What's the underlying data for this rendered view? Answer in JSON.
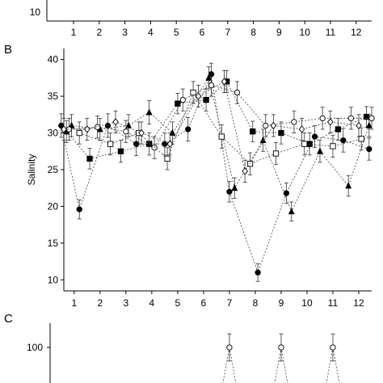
{
  "panel_a": {
    "y_tick": "10",
    "x_ticks": [
      "1",
      "2",
      "3",
      "4",
      "5",
      "6",
      "7",
      "8",
      "9",
      "10",
      "11",
      "12"
    ]
  },
  "panel_b": {
    "letter": "B"
  },
  "panel_c": {
    "letter": "C",
    "y_tick": "100"
  },
  "chart_data": [
    {
      "type": "line",
      "panel": "B",
      "ylabel": "Salinity",
      "xlabel": "",
      "x_ticks": [
        1,
        2,
        3,
        4,
        5,
        6,
        7,
        8,
        9,
        10,
        11,
        12
      ],
      "y_ticks": [
        10,
        15,
        20,
        25,
        30,
        35,
        40
      ],
      "xlim": [
        0.6,
        12.5
      ],
      "ylim": [
        8.5,
        41.5
      ],
      "series": [
        {
          "marker": "circle-filled",
          "x": [
            0.5,
            1.2,
            2.3,
            3.4,
            4.5,
            5.4,
            6.3,
            7.0,
            8.1,
            9.2,
            10.3,
            11.4,
            12.4
          ],
          "y": [
            31,
            19.6,
            31,
            28.5,
            28.5,
            30.5,
            38,
            22,
            11,
            21.8,
            29.5,
            29,
            27.8
          ],
          "err": [
            1.6,
            1.3,
            1.6,
            1.6,
            1.5,
            1.6,
            1.5,
            1.4,
            1.2,
            1.4,
            1.5,
            1.6,
            1.5
          ]
        },
        {
          "marker": "square-filled",
          "x": [
            0.7,
            1.6,
            2.8,
            3.9,
            5.0,
            6.1,
            6.9,
            7.9,
            9.0,
            10.1,
            11.2,
            12.3
          ],
          "y": [
            30.2,
            26.5,
            27.5,
            28.5,
            34,
            34.5,
            37,
            30.2,
            30,
            28.5,
            30.5,
            32.2
          ],
          "err": [
            1.5,
            1.4,
            1.5,
            1.5,
            1.4,
            1.5,
            1.5,
            1.4,
            1.5,
            1.5,
            1.5,
            1.4
          ]
        },
        {
          "marker": "triangle-filled",
          "x": [
            0.9,
            2.0,
            3.1,
            3.9,
            4.8,
            6.2,
            7.2,
            8.3,
            9.4,
            10.5,
            11.6,
            12.4
          ],
          "y": [
            31,
            30.5,
            31,
            32.8,
            30,
            37.5,
            22.5,
            29,
            19.3,
            27.5,
            22.8,
            31
          ],
          "err": [
            1.5,
            1.5,
            1.5,
            1.6,
            1.5,
            1.5,
            1.4,
            1.5,
            1.3,
            1.5,
            1.4,
            1.5
          ]
        },
        {
          "marker": "circle-open",
          "x": [
            0.8,
            1.9,
            3.0,
            4.1,
            5.2,
            6.3,
            7.3,
            8.4,
            9.5,
            10.6,
            11.7,
            12.5
          ],
          "y": [
            30.5,
            30.8,
            30.2,
            28,
            34.5,
            36.5,
            35.5,
            31,
            31.5,
            32,
            32,
            32
          ],
          "err": [
            1.5,
            1.5,
            1.5,
            1.5,
            1.5,
            1.5,
            1.5,
            1.5,
            1.5,
            1.5,
            1.5,
            1.5
          ]
        },
        {
          "marker": "square-open",
          "x": [
            1.2,
            2.4,
            3.5,
            4.6,
            5.6,
            6.7,
            7.8,
            8.8,
            9.9,
            11.0,
            12.1
          ],
          "y": [
            30,
            28.5,
            30,
            26.5,
            35.5,
            29.5,
            25.8,
            27.2,
            28.5,
            28.2,
            29.2
          ],
          "err": [
            1.5,
            1.5,
            1.5,
            1.5,
            1.5,
            1.6,
            1.5,
            1.5,
            1.5,
            1.5,
            1.5
          ]
        },
        {
          "marker": "diamond-open",
          "x": [
            0.6,
            1.5,
            2.6,
            3.6,
            4.7,
            5.8,
            6.8,
            7.6,
            8.7,
            9.8,
            10.9,
            12.0
          ],
          "y": [
            30.5,
            30.5,
            31.5,
            30,
            28.5,
            35,
            37,
            24.8,
            31,
            30.5,
            31.5,
            31
          ],
          "err": [
            1.5,
            1.5,
            1.5,
            1.5,
            1.5,
            1.5,
            1.5,
            1.5,
            1.5,
            1.5,
            1.5,
            1.5
          ]
        }
      ]
    },
    {
      "type": "line",
      "panel": "C",
      "ylabel": "",
      "y_ticks": [
        100
      ],
      "series": [
        {
          "marker": "circle-open",
          "x": [
            7,
            9,
            11
          ],
          "y": [
            100,
            100,
            100
          ],
          "err": [
            14,
            14,
            14
          ]
        }
      ]
    }
  ]
}
